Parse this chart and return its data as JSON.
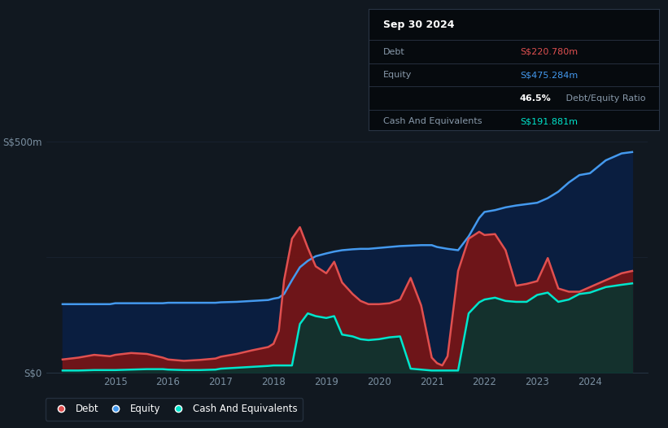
{
  "bg_color": "#111820",
  "plot_bg_color": "#111820",
  "debt_color": "#e05050",
  "equity_color": "#4499ee",
  "cash_color": "#00e5cc",
  "debt_fill_color": "#7a1515",
  "equity_fill_color": "#0a1e40",
  "cash_fill_color": "#0a3530",
  "annotation_bg": "#060a0e",
  "annotation_border": "#2a3545",
  "ann_title": "Sep 30 2024",
  "ann_debt_label": "Debt",
  "ann_debt_value": "S$220.780m",
  "ann_equity_label": "Equity",
  "ann_equity_value": "S$475.284m",
  "ann_ratio_bold": "46.5%",
  "ann_ratio_rest": " Debt/Equity Ratio",
  "ann_cash_label": "Cash And Equivalents",
  "ann_cash_value": "S$191.881m",
  "ylim_max": 520,
  "ylabel_text": "S$500m",
  "y0_text": "S$0",
  "xtick_labels": [
    "2015",
    "2016",
    "2017",
    "2018",
    "2019",
    "2020",
    "2021",
    "2022",
    "2023",
    "2024"
  ],
  "xtick_values": [
    2015,
    2016,
    2017,
    2018,
    2019,
    2020,
    2021,
    2022,
    2023,
    2024
  ],
  "years": [
    2014.0,
    2014.3,
    2014.6,
    2014.9,
    2015.0,
    2015.3,
    2015.6,
    2015.9,
    2016.0,
    2016.3,
    2016.6,
    2016.9,
    2017.0,
    2017.3,
    2017.6,
    2017.9,
    2018.0,
    2018.1,
    2018.2,
    2018.35,
    2018.5,
    2018.65,
    2018.8,
    2019.0,
    2019.15,
    2019.3,
    2019.5,
    2019.65,
    2019.8,
    2020.0,
    2020.2,
    2020.4,
    2020.6,
    2020.8,
    2021.0,
    2021.1,
    2021.2,
    2021.3,
    2021.5,
    2021.7,
    2021.9,
    2022.0,
    2022.2,
    2022.4,
    2022.6,
    2022.8,
    2023.0,
    2023.2,
    2023.4,
    2023.6,
    2023.8,
    2024.0,
    2024.3,
    2024.6,
    2024.8
  ],
  "debt": [
    28,
    32,
    38,
    35,
    38,
    42,
    40,
    32,
    28,
    25,
    27,
    30,
    34,
    40,
    48,
    55,
    62,
    90,
    200,
    290,
    315,
    270,
    230,
    215,
    240,
    195,
    170,
    155,
    148,
    148,
    150,
    158,
    205,
    145,
    32,
    20,
    15,
    35,
    220,
    290,
    305,
    298,
    300,
    265,
    188,
    192,
    198,
    248,
    182,
    175,
    175,
    185,
    200,
    215,
    220
  ],
  "equity": [
    148,
    148,
    148,
    148,
    150,
    150,
    150,
    150,
    151,
    151,
    151,
    151,
    152,
    153,
    155,
    157,
    160,
    162,
    170,
    200,
    228,
    242,
    252,
    258,
    262,
    265,
    267,
    268,
    268,
    270,
    272,
    274,
    275,
    276,
    276,
    272,
    270,
    268,
    265,
    295,
    335,
    348,
    352,
    358,
    362,
    365,
    368,
    378,
    392,
    412,
    428,
    432,
    460,
    475,
    478
  ],
  "cash": [
    4,
    4,
    5,
    5,
    5,
    6,
    7,
    7,
    6,
    5,
    5,
    6,
    8,
    10,
    12,
    14,
    15,
    15,
    15,
    15,
    105,
    128,
    122,
    118,
    122,
    82,
    78,
    72,
    70,
    72,
    76,
    78,
    8,
    6,
    4,
    4,
    4,
    4,
    4,
    128,
    152,
    158,
    162,
    155,
    153,
    153,
    168,
    173,
    153,
    158,
    170,
    173,
    185,
    190,
    193
  ]
}
